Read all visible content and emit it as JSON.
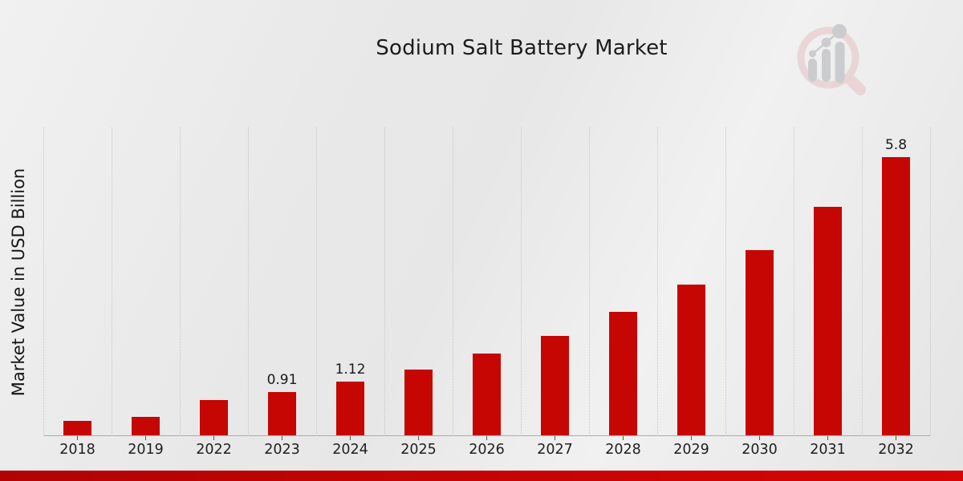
{
  "header": {
    "title": "Sodium Salt Battery Market"
  },
  "logo": {
    "icon": "magnifier-bar-chart-logo",
    "ring_color": "#e9d1d3",
    "bars_color": "#c6c6c9"
  },
  "colors": {
    "bar": "#c60602",
    "strip_gradient_left": "#b20303",
    "strip_gradient_right": "#d60404",
    "gridline": "#c6c6c6",
    "axis_line": "#ababab",
    "text": "#1c1c1c"
  },
  "chart_data": {
    "type": "bar",
    "title": "Sodium Salt Battery Market",
    "xlabel": "",
    "ylabel": "Market Value in USD Billion",
    "categories": [
      "2018",
      "2019",
      "2022",
      "2023",
      "2024",
      "2025",
      "2026",
      "2027",
      "2028",
      "2029",
      "2030",
      "2031",
      "2032"
    ],
    "values": [
      0.3,
      0.38,
      0.73,
      0.91,
      1.12,
      1.37,
      1.7,
      2.07,
      2.58,
      3.15,
      3.87,
      4.77,
      5.8
    ],
    "bar_labels": [
      "",
      "",
      "",
      "0.91",
      "1.12",
      "",
      "",
      "",
      "",
      "",
      "",
      "",
      "5.8"
    ],
    "ylim": [
      0,
      6.42
    ],
    "bar_color": "#c60602",
    "grid": "vertical-dotted",
    "legend": "none",
    "y_tick_labels_shown": false
  }
}
